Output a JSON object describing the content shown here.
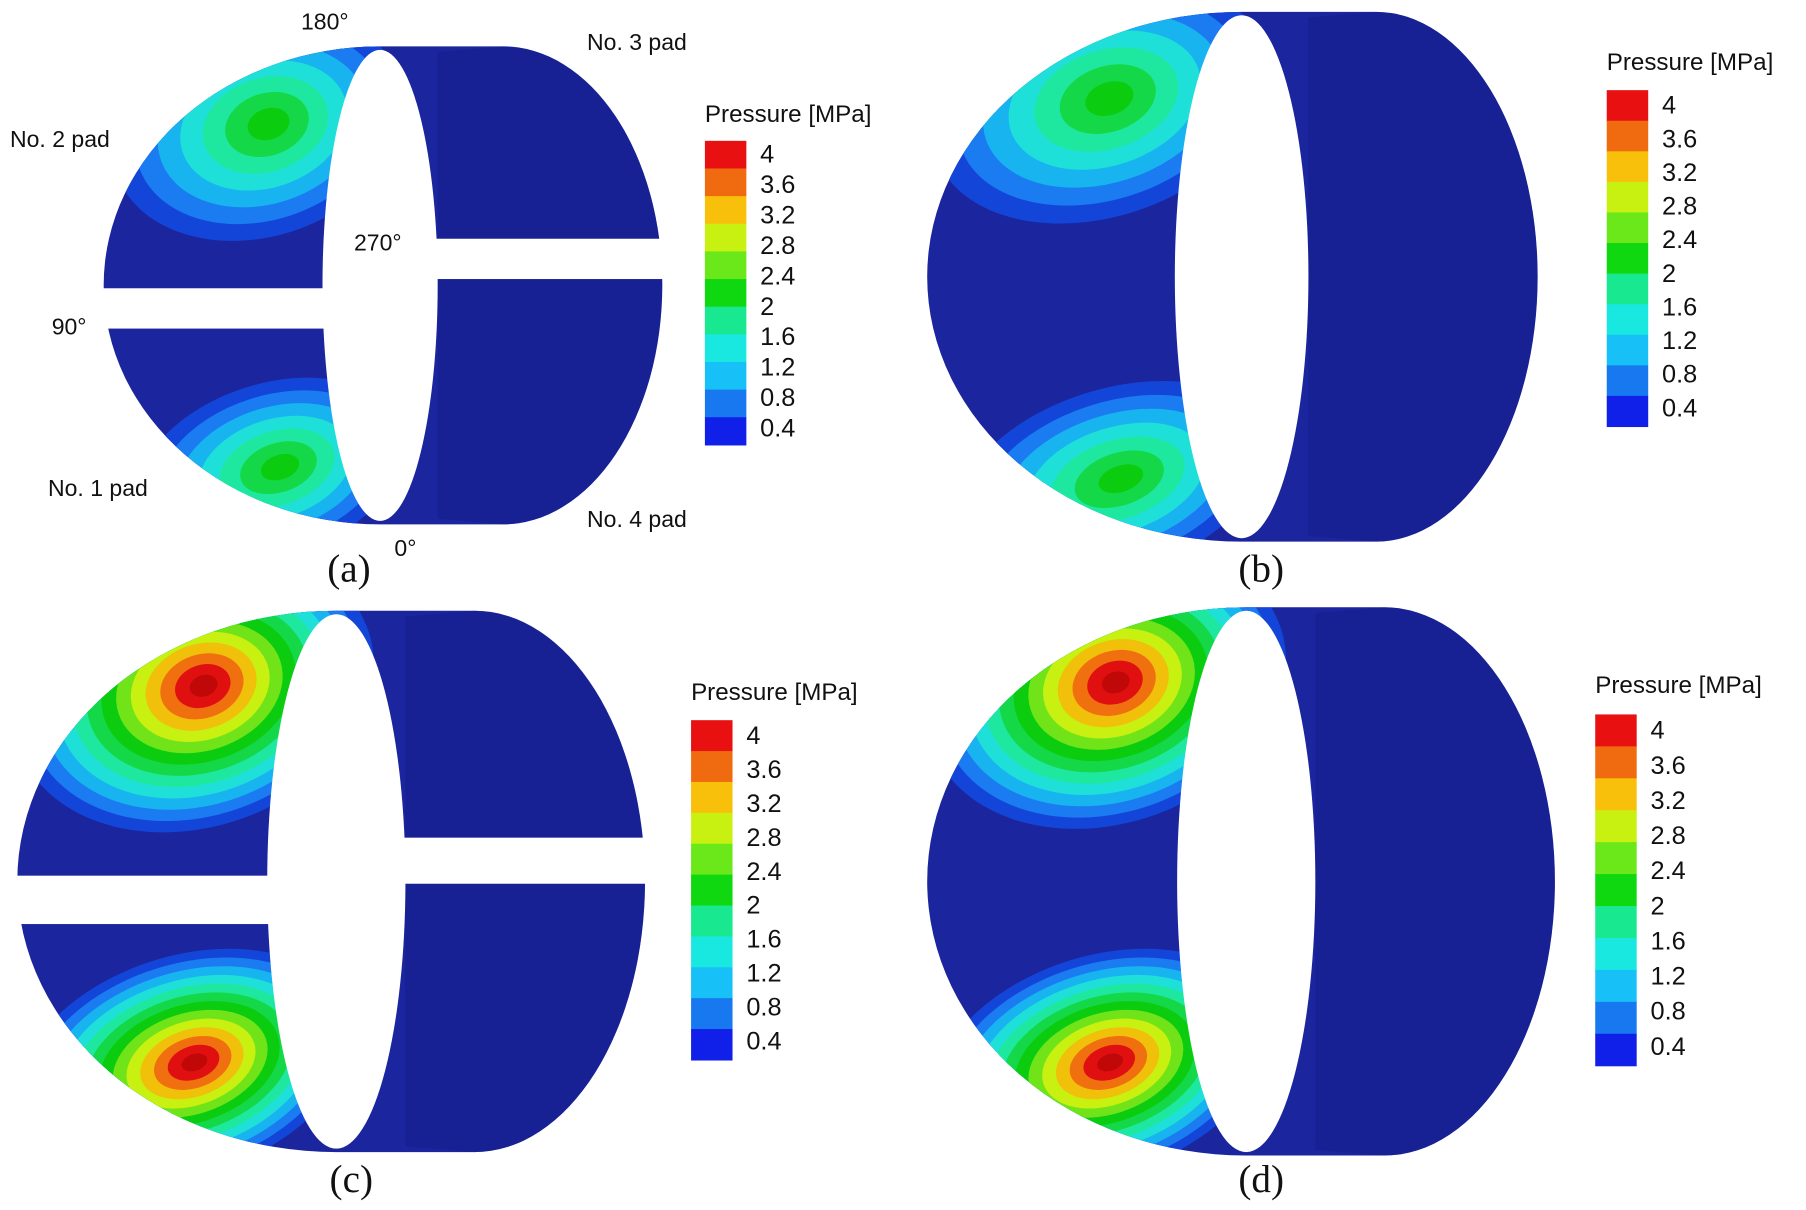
{
  "panels": [
    {
      "label": "(a)",
      "legend": {
        "title": "Pressure [MPa]",
        "ticks": [
          4,
          3.6,
          3.2,
          2.8,
          2.4,
          2,
          1.6,
          1.2,
          0.8,
          0.4
        ]
      },
      "annotations": [
        "180°",
        "No. 3 pad",
        "No. 2 pad",
        "270°",
        "90°",
        "No. 1 pad",
        "No. 4 pad",
        "0°"
      ]
    },
    {
      "label": "(b)",
      "legend": {
        "title": "Pressure [MPa]",
        "ticks": [
          4,
          3.6,
          3.2,
          2.8,
          2.4,
          2,
          1.6,
          1.2,
          0.8,
          0.4
        ]
      }
    },
    {
      "label": "(c)",
      "legend": {
        "title": "Pressure [MPa]",
        "ticks": [
          4,
          3.6,
          3.2,
          2.8,
          2.4,
          2,
          1.6,
          1.2,
          0.8,
          0.4
        ]
      }
    },
    {
      "label": "(d)",
      "legend": {
        "title": "Pressure [MPa]",
        "ticks": [
          4,
          3.6,
          3.2,
          2.8,
          2.4,
          2,
          1.6,
          1.2,
          0.8,
          0.4
        ]
      }
    }
  ]
}
